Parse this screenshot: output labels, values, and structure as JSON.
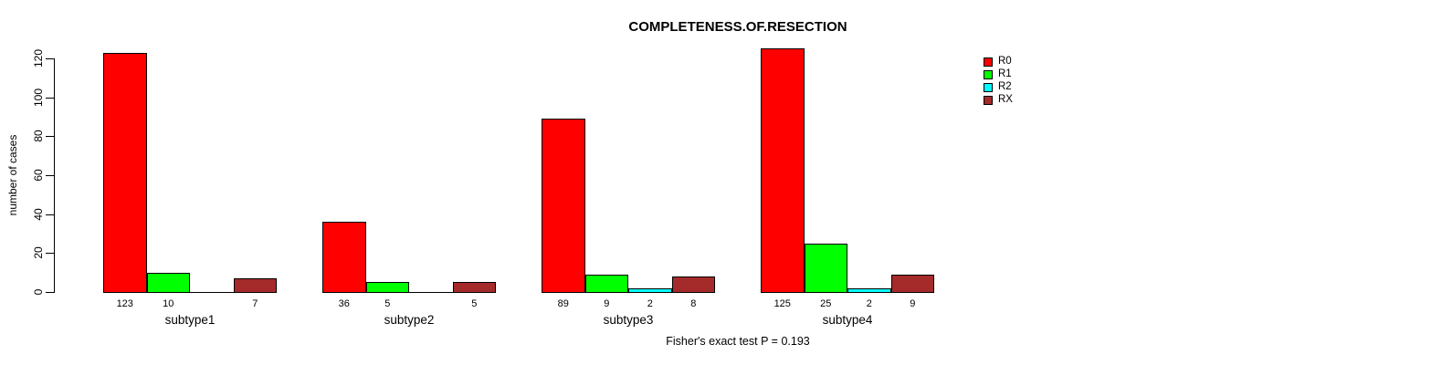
{
  "chart_data": {
    "type": "bar",
    "title": "COMPLETENESS.OF.RESECTION",
    "ylabel": "number of cases",
    "xlabel": "",
    "note": "Fisher's exact test P = 0.193",
    "categories": [
      "subtype1",
      "subtype2",
      "subtype3",
      "subtype4"
    ],
    "series": [
      {
        "name": "R0",
        "color": "#FF0000",
        "values": [
          123,
          36,
          89,
          125
        ]
      },
      {
        "name": "R1",
        "color": "#00FF00",
        "values": [
          10,
          5,
          9,
          25
        ]
      },
      {
        "name": "R2",
        "color": "#00FFFF",
        "values": [
          0,
          0,
          2,
          2
        ]
      },
      {
        "name": "RX",
        "color": "#A52A2A",
        "values": [
          7,
          5,
          8,
          9
        ]
      }
    ],
    "ylim": [
      0,
      120
    ],
    "yticks": [
      0,
      20,
      40,
      60,
      80,
      100,
      120
    ],
    "legend_position": "right",
    "grid": false,
    "bar_value_labels_shown": true,
    "zero_value_labels_hidden": true
  },
  "figure": {
    "background": "#FFFFFF",
    "axis_color": "#000000",
    "bar_border_color": "#000000"
  }
}
